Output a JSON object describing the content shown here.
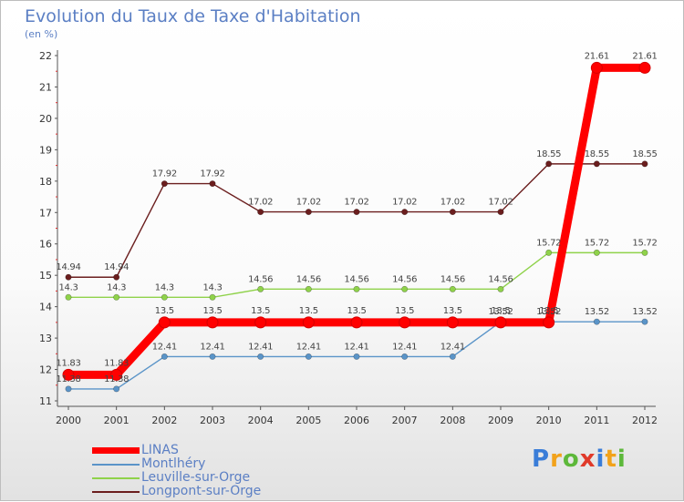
{
  "chart_data": {
    "type": "line",
    "title": "Evolution du Taux de Taxe d'Habitation",
    "subtitle": "(en %)",
    "xlabel": "",
    "ylabel": "",
    "ylim": [
      11,
      22
    ],
    "yticks": [
      "11",
      "12",
      "13",
      "14",
      "15",
      "16",
      "17",
      "18",
      "19",
      "20",
      "21",
      "22"
    ],
    "x": [
      "2000",
      "2001",
      "2002",
      "2003",
      "2004",
      "2005",
      "2006",
      "2007",
      "2008",
      "2009",
      "2010",
      "2011",
      "2012"
    ],
    "grid": false,
    "legend_position": "bottom-left",
    "series": [
      {
        "name": "Longpont-sur-Orge",
        "color": "#6b1e1e",
        "values": [
          14.94,
          14.94,
          17.92,
          17.92,
          17.02,
          17.02,
          17.02,
          17.02,
          17.02,
          17.02,
          18.55,
          18.55,
          18.55
        ],
        "labels": [
          "14.94",
          "14.94",
          "17.92",
          "17.92",
          "17.02",
          "17.02",
          "17.02",
          "17.02",
          "17.02",
          "17.02",
          "18.55",
          "18.55",
          "18.55"
        ]
      },
      {
        "name": "Leuville-sur-Orge",
        "color": "#8fd24a",
        "values": [
          14.3,
          14.3,
          14.3,
          14.3,
          14.56,
          14.56,
          14.56,
          14.56,
          14.56,
          14.56,
          15.72,
          15.72,
          15.72
        ],
        "labels": [
          "14.3",
          "14.3",
          "14.3",
          "14.3",
          "14.56",
          "14.56",
          "14.56",
          "14.56",
          "14.56",
          "14.56",
          "15.72",
          "15.72",
          "15.72"
        ]
      },
      {
        "name": "Montlhéry",
        "color": "#5a94c8",
        "values": [
          11.38,
          11.38,
          12.41,
          12.41,
          12.41,
          12.41,
          12.41,
          12.41,
          12.41,
          13.52,
          13.52,
          13.52,
          13.52
        ],
        "labels": [
          "11.38",
          "11.38",
          "12.41",
          "12.41",
          "12.41",
          "12.41",
          "12.41",
          "12.41",
          "12.41",
          "13.52",
          "13.52",
          "13.52",
          "13.52"
        ]
      },
      {
        "name": "LINAS",
        "color": "#ff0000",
        "values": [
          11.83,
          11.83,
          13.5,
          13.5,
          13.5,
          13.5,
          13.5,
          13.5,
          13.5,
          13.5,
          13.5,
          21.61,
          21.61
        ],
        "labels": [
          "11.83",
          "11.83",
          "13.5",
          "13.5",
          "13.5",
          "13.5",
          "13.5",
          "13.5",
          "13.5",
          "13.5",
          "13.5",
          "21.61",
          "21.61"
        ]
      }
    ],
    "legend": [
      "LINAS",
      "Montlhéry",
      "Leuville-sur-Orge",
      "Longpont-sur-Orge"
    ]
  },
  "branding": {
    "logo_letters": [
      "P",
      "r",
      "o",
      "x",
      "i",
      "t",
      "i"
    ],
    "logo_colors": [
      "#3a7dd8",
      "#f2a21b",
      "#5db83a",
      "#e03a2a",
      "#3a7dd8",
      "#f2a21b",
      "#5db83a"
    ]
  }
}
